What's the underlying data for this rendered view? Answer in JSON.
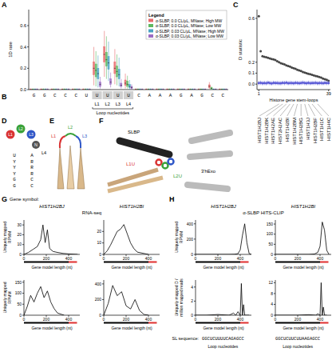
{
  "panel_letters": [
    "A",
    "B",
    "C",
    "D",
    "E",
    "F",
    "G",
    "H"
  ],
  "chart_data": [
    {
      "type": "box",
      "ylabel": "1D rate",
      "legend": "upper right",
      "legend_title": "Legend",
      "categories": [
        "G",
        "G",
        "C",
        "C",
        "C",
        "U",
        "U",
        "U",
        "U",
        "U",
        "C",
        "A",
        "A",
        "A",
        "G",
        "A",
        "G",
        "C",
        "C"
      ],
      "loop_labels": [
        null,
        null,
        null,
        null,
        null,
        null,
        "L1",
        "L2",
        "L3",
        "L4",
        null,
        null,
        null,
        null,
        null,
        null,
        null,
        null,
        null
      ],
      "loop_title": "Loop nucleotides",
      "ylim": [
        0,
        0.75
      ],
      "yticks": [
        {
          "value": 0,
          "label": "0.0"
        },
        {
          "value": 0.2,
          "label": "0.2"
        },
        {
          "value": 0.4,
          "label": "0.4"
        },
        {
          "value": 0.6,
          "label": "0.6"
        }
      ],
      "series": [
        {
          "name": "α-SLBP, 0.0 CL/μL, MNase; High MW",
          "color": "#e8696b",
          "values": [
            0.003,
            0.003,
            0.003,
            0.003,
            0.003,
            0.003,
            0.2,
            0.33,
            0.2,
            0.06,
            0.003,
            0.003,
            0.003,
            0.003,
            0.003,
            0.003,
            0.003,
            0.03,
            0.003
          ],
          "q1": [
            0,
            0,
            0,
            0,
            0,
            0,
            0.14,
            0.26,
            0.15,
            0.04,
            0,
            0,
            0,
            0,
            0,
            0,
            0,
            0.02,
            0
          ],
          "q3": [
            0.006,
            0.006,
            0.006,
            0.006,
            0.006,
            0.006,
            0.26,
            0.4,
            0.26,
            0.09,
            0.006,
            0.006,
            0.006,
            0.006,
            0.006,
            0.006,
            0.006,
            0.045,
            0.006
          ],
          "whisker_low": [
            0,
            0,
            0,
            0,
            0,
            0,
            0.04,
            0.12,
            0.05,
            0.01,
            0,
            0,
            0,
            0,
            0,
            0,
            0,
            0.005,
            0
          ],
          "whisker_high": [
            0.01,
            0.01,
            0.01,
            0.01,
            0.01,
            0.01,
            0.4,
            0.55,
            0.38,
            0.15,
            0.01,
            0.01,
            0.01,
            0.01,
            0.01,
            0.01,
            0.01,
            0.07,
            0.01
          ]
        },
        {
          "name": "α-SLBP, 0.0 CL/μL, MNase; Low MW",
          "color": "#5fb85f",
          "values": [
            0.003,
            0.003,
            0.003,
            0.003,
            0.003,
            0.003,
            0.18,
            0.28,
            0.17,
            0.05,
            0.003,
            0.003,
            0.003,
            0.003,
            0.003,
            0.003,
            0.003,
            0.01,
            0.003
          ],
          "q1": [
            0,
            0,
            0,
            0,
            0,
            0,
            0.12,
            0.22,
            0.12,
            0.03,
            0,
            0,
            0,
            0,
            0,
            0,
            0,
            0.005,
            0
          ],
          "q3": [
            0.006,
            0.006,
            0.006,
            0.006,
            0.006,
            0.006,
            0.24,
            0.35,
            0.22,
            0.08,
            0.006,
            0.006,
            0.006,
            0.006,
            0.006,
            0.006,
            0.006,
            0.02,
            0.006
          ],
          "whisker_low": [
            0,
            0,
            0,
            0,
            0,
            0,
            0.03,
            0.1,
            0.04,
            0.01,
            0,
            0,
            0,
            0,
            0,
            0,
            0,
            0,
            0
          ],
          "whisker_high": [
            0.01,
            0.01,
            0.01,
            0.01,
            0.01,
            0.01,
            0.36,
            0.5,
            0.33,
            0.13,
            0.01,
            0.01,
            0.01,
            0.01,
            0.01,
            0.01,
            0.01,
            0.03,
            0.01
          ]
        },
        {
          "name": "α-SLBP, 0.03 CL/μL, MNase; High MW",
          "color": "#4aa3c3",
          "values": [
            0.003,
            0.003,
            0.003,
            0.003,
            0.003,
            0.003,
            0.15,
            0.25,
            0.14,
            0.03,
            0.003,
            0.003,
            0.003,
            0.003,
            0.003,
            0.003,
            0.003,
            0.003,
            0.003
          ],
          "q1": [
            0,
            0,
            0,
            0,
            0,
            0,
            0.1,
            0.19,
            0.1,
            0.02,
            0,
            0,
            0,
            0,
            0,
            0,
            0,
            0,
            0
          ],
          "q3": [
            0.006,
            0.006,
            0.006,
            0.006,
            0.006,
            0.006,
            0.2,
            0.31,
            0.19,
            0.05,
            0.006,
            0.006,
            0.006,
            0.006,
            0.006,
            0.006,
            0.006,
            0.006,
            0.006
          ],
          "whisker_low": [
            0,
            0,
            0,
            0,
            0,
            0,
            0.02,
            0.08,
            0.03,
            0,
            0,
            0,
            0,
            0,
            0,
            0,
            0,
            0,
            0
          ],
          "whisker_high": [
            0.01,
            0.01,
            0.01,
            0.01,
            0.01,
            0.01,
            0.32,
            0.45,
            0.3,
            0.09,
            0.01,
            0.01,
            0.01,
            0.01,
            0.01,
            0.01,
            0.01,
            0.01,
            0.01
          ]
        },
        {
          "name": "α-SLBP, 0.03 CL/μL, MNase; Low MW",
          "color": "#9b6bc4",
          "values": [
            0.003,
            0.003,
            0.003,
            0.003,
            0.003,
            0.003,
            0.05,
            0.07,
            0.04,
            0.02,
            0.003,
            0.003,
            0.003,
            0.003,
            0.003,
            0.003,
            0.003,
            0.003,
            0.003
          ],
          "q1": [
            0,
            0,
            0,
            0,
            0,
            0,
            0.03,
            0.05,
            0.03,
            0.01,
            0,
            0,
            0,
            0,
            0,
            0,
            0,
            0,
            0
          ],
          "q3": [
            0.006,
            0.006,
            0.006,
            0.006,
            0.006,
            0.006,
            0.07,
            0.1,
            0.06,
            0.03,
            0.006,
            0.006,
            0.006,
            0.006,
            0.006,
            0.006,
            0.006,
            0.006,
            0.006
          ],
          "whisker_low": [
            0,
            0,
            0,
            0,
            0,
            0,
            0.01,
            0.02,
            0.01,
            0,
            0,
            0,
            0,
            0,
            0,
            0,
            0,
            0,
            0
          ],
          "whisker_high": [
            0.01,
            0.01,
            0.01,
            0.01,
            0.01,
            0.01,
            0.12,
            0.16,
            0.1,
            0.05,
            0.01,
            0.01,
            0.01,
            0.01,
            0.01,
            0.01,
            0.01,
            0.01,
            0.01
          ]
        }
      ]
    },
    {
      "type": "scatter",
      "ylabel": "D statistic",
      "xlabel": "Histone gene stem-loops",
      "x": [
        1,
        2,
        3,
        4,
        5,
        6,
        7,
        8,
        9,
        10,
        11,
        12,
        13,
        14,
        15,
        16,
        17,
        18,
        19,
        20,
        21,
        22,
        23,
        24,
        25,
        26,
        27,
        28,
        29,
        30,
        31,
        32,
        33,
        34,
        35,
        36,
        37,
        38,
        39
      ],
      "xlim": [
        0,
        40
      ],
      "xticks": [
        1,
        39
      ],
      "ylim": [
        -0.05,
        0.68
      ],
      "yticks": [
        {
          "value": 0,
          "label": "0.0"
        },
        {
          "value": 0.1,
          "label": "0.1"
        },
        {
          "value": 0.2,
          "label": "0.2"
        },
        {
          "value": 0.6,
          "label": "0.6"
        }
      ],
      "series": [
        {
          "color": "#444444",
          "marker": "circle",
          "values": [
            0.62,
            0.3,
            0.255,
            0.25,
            0.245,
            0.24,
            0.235,
            0.23,
            0.225,
            0.22,
            0.21,
            0.2,
            0.19,
            0.185,
            0.18,
            0.17,
            0.165,
            0.16,
            0.15,
            0.145,
            0.14,
            0.13,
            0.125,
            0.12,
            0.11,
            0.105,
            0.1,
            0.095,
            0.09,
            0.085,
            0.08,
            0.075,
            0.07,
            0.065,
            0.06,
            0.05,
            0.045,
            0.04,
            0.03
          ]
        },
        {
          "color": "#5b5bd6",
          "marker": "circle",
          "values": [
            0.01,
            0.012,
            0.008,
            0.011,
            0.009,
            0.013,
            0.01,
            0.007,
            0.012,
            0.01,
            0.011,
            0.009,
            0.008,
            0.012,
            0.01,
            0.013,
            0.009,
            0.011,
            0.01,
            0.008,
            0.012,
            0.01,
            0.009,
            0.011,
            0.013,
            0.01,
            0.008,
            0.012,
            0.009,
            0.011,
            0.01,
            0.012,
            0.008,
            0.01,
            0.011,
            0.009,
            0.012,
            0.01,
            0.011
          ],
          "errors": [
            0.02,
            0.02,
            0.02,
            0.02,
            0.02,
            0.02,
            0.02,
            0.02,
            0.02,
            0.02,
            0.02,
            0.02,
            0.02,
            0.02,
            0.02,
            0.02,
            0.02,
            0.02,
            0.02,
            0.02,
            0.02,
            0.02,
            0.02,
            0.02,
            0.02,
            0.02,
            0.02,
            0.02,
            0.02,
            0.02,
            0.02,
            0.02,
            0.02,
            0.02,
            0.02,
            0.02,
            0.02,
            0.02,
            0.02
          ]
        }
      ],
      "labeled_x": [
        12,
        14,
        16,
        18,
        20,
        22,
        24,
        26,
        28,
        30,
        33
      ],
      "gene_labels": [
        "HIST1H2BJ",
        "HIST1H2BK",
        "HIST1H2AE",
        "HIST2H2AC",
        "HIST1H2BI",
        "HIST1H2BM",
        "HIST1H2BG",
        "HIST1H3J",
        "HIST1H2BF",
        "HIST1H1C",
        "HIST1H4C"
      ]
    },
    {
      "type": "line",
      "title": "HIST1H2BJ",
      "ylabel": "Uniquely mapped RPMM",
      "xlabel": "Gene model length (nt)",
      "color": "#000000",
      "x": [
        0,
        40,
        80,
        120,
        150,
        170,
        190,
        210,
        230,
        260,
        300,
        350,
        400,
        450,
        480
      ],
      "values": [
        0,
        2,
        5,
        8,
        15,
        30,
        12,
        25,
        6,
        3,
        2,
        1,
        0.5,
        0.2,
        0
      ],
      "xlim": [
        0,
        500
      ],
      "xticks": [
        0,
        200,
        400
      ],
      "ylim": [
        0,
        35
      ],
      "yticks": [
        0,
        10,
        20,
        30
      ]
    },
    {
      "type": "line",
      "title": "HIST1H2BI",
      "xlabel": "Gene model length (nt)",
      "color": "#000000",
      "x": [
        0,
        30,
        60,
        90,
        120,
        150,
        180,
        210,
        240,
        270,
        300,
        350,
        400
      ],
      "values": [
        0,
        3,
        8,
        14,
        20,
        22,
        26,
        18,
        10,
        5,
        2,
        1,
        0
      ],
      "xlim": [
        0,
        500
      ],
      "xticks": [
        0,
        200,
        400
      ],
      "ylim": [
        0,
        30
      ],
      "yticks": [
        0,
        10,
        20
      ]
    },
    {
      "type": "line",
      "ylabel": "Uniquely mapped RPMM",
      "xlabel": "Gene model length (nt)",
      "color": "#000000",
      "x": [
        0,
        30,
        60,
        90,
        120,
        150,
        180,
        210,
        240,
        270,
        300,
        330,
        360
      ],
      "values": [
        0,
        40,
        90,
        60,
        100,
        130,
        80,
        110,
        60,
        30,
        10,
        5,
        0
      ],
      "xlim": [
        0,
        500
      ],
      "xticks": [
        0,
        200,
        400
      ],
      "ylim": [
        0,
        160
      ],
      "yticks": [
        0,
        50,
        100,
        150
      ]
    },
    {
      "type": "line",
      "xlabel": "Gene model length (nt)",
      "color": "#000000",
      "x": [
        0,
        40,
        80,
        120,
        160,
        200,
        240,
        280,
        320,
        360,
        400
      ],
      "values": [
        0,
        150,
        380,
        250,
        300,
        120,
        80,
        200,
        60,
        10,
        0
      ],
      "xlim": [
        0,
        500
      ],
      "xticks": [
        0,
        200,
        400
      ],
      "ylim": [
        0,
        450
      ],
      "yticks": [
        0,
        200,
        400
      ]
    },
    {
      "type": "line",
      "title": "HIST1H2BJ",
      "ylabel": "Uniquely mapped RPMM",
      "xlabel": "Gene model length (nt)",
      "color": "#000000",
      "x": [
        0,
        100,
        200,
        300,
        350,
        380,
        400,
        420,
        440,
        460,
        480,
        500
      ],
      "values": [
        0,
        0,
        0,
        0,
        2,
        10,
        60,
        250,
        400,
        150,
        10,
        0
      ],
      "xlim": [
        0,
        500
      ],
      "xticks": [
        0,
        200,
        400
      ],
      "ylim": [
        0,
        450
      ],
      "yticks": [
        0,
        200,
        400
      ]
    },
    {
      "type": "line",
      "title": "HIST1H2BI",
      "xlabel": "Gene model length (nt)",
      "color": "#000000",
      "x": [
        0,
        100,
        200,
        300,
        350,
        380,
        400,
        420,
        440,
        460,
        480
      ],
      "values": [
        0,
        0,
        0,
        0,
        2,
        10,
        40,
        160,
        120,
        20,
        0
      ],
      "xlim": [
        0,
        500
      ],
      "xticks": [
        0,
        200,
        400
      ],
      "ylim": [
        0,
        170
      ],
      "yticks": [
        0,
        50,
        100,
        150
      ]
    },
    {
      "type": "line",
      "ylabel": "Uniquely mapped D / million mapped reads",
      "xlabel": "Gene model length (nt)",
      "color": "#000000",
      "x": [
        0,
        100,
        200,
        300,
        340,
        360,
        380,
        400,
        410,
        420,
        430,
        440,
        460,
        480
      ],
      "values": [
        0,
        0,
        0.1,
        0,
        0.3,
        0,
        0.5,
        0,
        4.5,
        0,
        1.5,
        0,
        0,
        0
      ],
      "xlim": [
        0,
        500
      ],
      "xticks": [
        0,
        200,
        400
      ],
      "ylim": [
        0,
        5
      ],
      "yticks": [
        0,
        2,
        4
      ]
    },
    {
      "type": "line",
      "xlabel": "Gene model length (nt)",
      "color": "#000000",
      "x": [
        0,
        100,
        200,
        300,
        360,
        380,
        400,
        410,
        420,
        430,
        440,
        460
      ],
      "values": [
        0,
        0,
        0,
        0.2,
        0,
        0.5,
        0,
        12,
        0,
        3,
        0,
        0
      ],
      "xlim": [
        0,
        500
      ],
      "xticks": [
        0,
        200,
        400
      ],
      "ylim": [
        0,
        13
      ],
      "yticks": [
        0,
        4,
        8,
        12
      ]
    }
  ],
  "diagram_d": {
    "loops": [
      "L1",
      "L2",
      "L3"
    ],
    "n_label": "N",
    "l4_label": "L4",
    "stem_left": [
      "U",
      "Y",
      "Y",
      "Y",
      "G",
      "G"
    ],
    "stem_right": [
      "A",
      "R",
      "R",
      "R",
      "C",
      "C"
    ]
  },
  "diagram_e": {
    "labels": [
      "L1",
      "L2",
      "L3"
    ]
  },
  "diagram_f": {
    "protein": "SLBP",
    "exonuclease": "3'hExo",
    "loop_labels": [
      "L1U",
      "L2U"
    ]
  },
  "headers": {
    "gene_symbol": "Gene symbol:",
    "rnaseq": "RNA-seq",
    "clip": "α-SLBP HITS-CLIP"
  },
  "sl": {
    "label": "SL sequence:",
    "sequences": [
      "GGCUCUUUUCAGAGCC",
      "GGCUCUUCUUAAGAGCC"
    ],
    "loop_label": "Loop nucleotides"
  }
}
